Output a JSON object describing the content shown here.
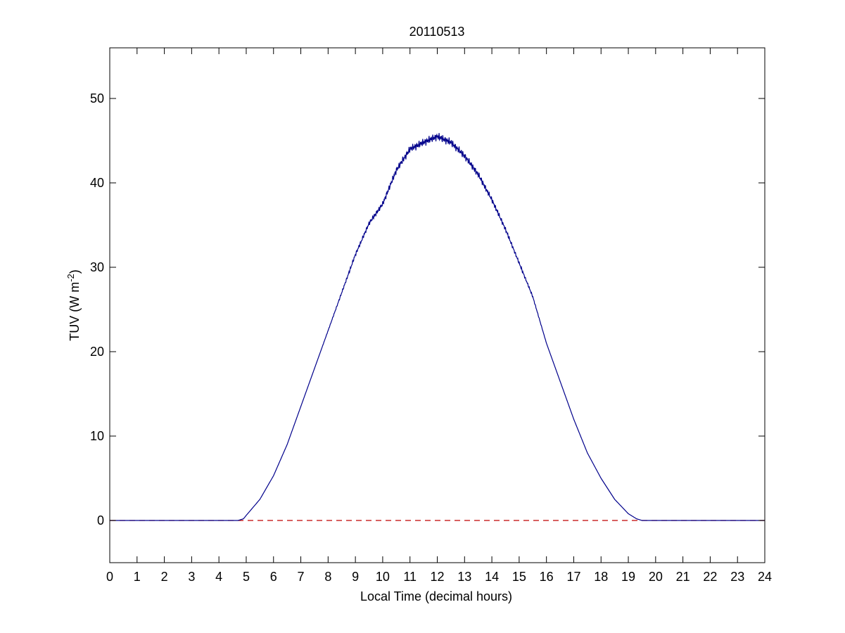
{
  "chart_data": {
    "type": "line",
    "title": "20110513",
    "xlabel": "Local Time (decimal hours)",
    "ylabel": "TUV (W m",
    "ylabel_sup": "-2",
    "ylabel_close": ")",
    "xlim": [
      0,
      24
    ],
    "ylim": [
      -5,
      56
    ],
    "xticks": [
      0,
      1,
      2,
      3,
      4,
      5,
      6,
      7,
      8,
      9,
      10,
      11,
      12,
      13,
      14,
      15,
      16,
      17,
      18,
      19,
      20,
      21,
      22,
      23,
      24
    ],
    "yticks": [
      0,
      10,
      20,
      30,
      40,
      50
    ],
    "grid": false,
    "series": [
      {
        "color": "#00008b",
        "style": "solid",
        "x": [
          0,
          4.7,
          4.9,
          5.0,
          5.5,
          6.0,
          6.5,
          7.0,
          7.5,
          8.0,
          8.5,
          9.0,
          9.5,
          10.0,
          10.5,
          11.0,
          11.5,
          12.0,
          12.5,
          13.0,
          13.5,
          14.0,
          14.5,
          15.0,
          15.5,
          16.0,
          16.5,
          17.0,
          17.5,
          18.0,
          18.5,
          19.0,
          19.3,
          19.5,
          24
        ],
        "y": [
          0,
          0,
          0.2,
          0.6,
          2.5,
          5.3,
          9.0,
          13.5,
          18.0,
          22.5,
          27.0,
          31.5,
          35.2,
          37.5,
          41.5,
          44.0,
          44.8,
          45.5,
          44.8,
          43.2,
          41.0,
          38.0,
          34.5,
          30.5,
          26.5,
          21.0,
          16.5,
          12.0,
          8.0,
          5.0,
          2.5,
          0.8,
          0.2,
          0,
          0
        ]
      },
      {
        "color": "#c00000",
        "style": "dashed",
        "x": [
          0,
          24
        ],
        "y": [
          0,
          0
        ]
      }
    ]
  }
}
